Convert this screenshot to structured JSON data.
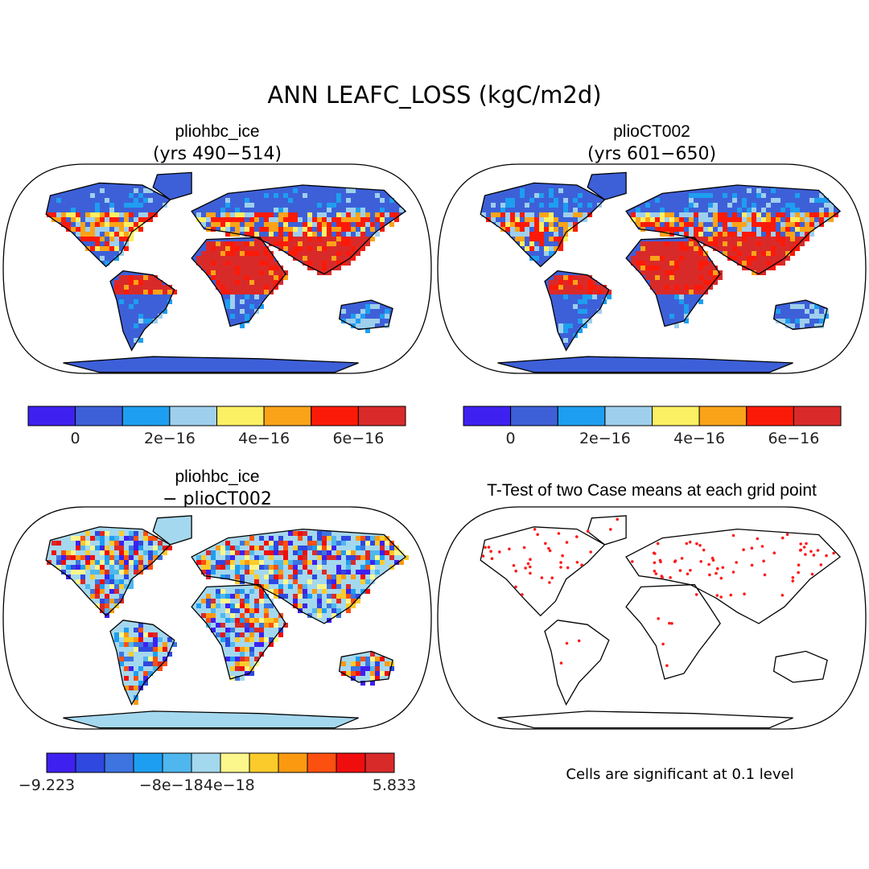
{
  "title": "ANN LEAFC_LOSS (kgC/m2d)",
  "colors": {
    "ocean": "#ffffff",
    "coast": "#000000",
    "significant": "#ff1a1a"
  },
  "panels": [
    {
      "id": "case1",
      "title": "pliohbc_ice",
      "subtitle": "(yrs 490−514)",
      "colorbar": {
        "colors": [
          "#3e20f0",
          "#3d60d8",
          "#1e9ef0",
          "#9ecfec",
          "#fbef63",
          "#fba318",
          "#fb1a08",
          "#d92a2a"
        ],
        "labels": [
          "0",
          "2e−16",
          "4e−16",
          "6e−16"
        ]
      }
    },
    {
      "id": "case2",
      "title": "plioCT002",
      "subtitle": "(yrs 601−650)",
      "colorbar": {
        "colors": [
          "#3e20f0",
          "#3d60d8",
          "#1e9ef0",
          "#9ecfec",
          "#fbef63",
          "#fba318",
          "#fb1a08",
          "#d92a2a"
        ],
        "labels": [
          "0",
          "2e−16",
          "4e−16",
          "6e−16"
        ]
      }
    },
    {
      "id": "diff",
      "title": "pliohbc_ice",
      "subtitle": "− plioCT002",
      "colorbar": {
        "colors": [
          "#3e20f0",
          "#2e48e0",
          "#3d74e0",
          "#1e9ef0",
          "#4fb7ee",
          "#a4d8ee",
          "#fbf78c",
          "#fbcb2b",
          "#fb9a10",
          "#fb5010",
          "#f00d0d",
          "#d92a2a"
        ],
        "labels": [
          "−9.223",
          "−8e−18",
          "4e−18",
          "5.833"
        ]
      }
    },
    {
      "id": "ttest",
      "title": "T-Test of two Case means at each grid point",
      "footnote": "Cells are significant at 0.1 level"
    }
  ],
  "chart_data": [
    {
      "type": "heatmap",
      "title": "pliohbc_ice (yrs 490−514)",
      "variable": "LEAFC_LOSS",
      "units": "kgC/m2d",
      "colorbar_ticks": [
        0,
        2e-16,
        4e-16,
        6e-16
      ],
      "projection": "Robinson"
    },
    {
      "type": "heatmap",
      "title": "plioCT002 (yrs 601−650)",
      "variable": "LEAFC_LOSS",
      "units": "kgC/m2d",
      "colorbar_ticks": [
        0,
        2e-16,
        4e-16,
        6e-16
      ],
      "projection": "Robinson"
    },
    {
      "type": "heatmap",
      "title": "pliohbc_ice − plioCT002",
      "variable": "LEAFC_LOSS difference",
      "units": "kgC/m2d",
      "colorbar_ticks": [
        -9.223,
        -8e-18,
        4e-18,
        5.833
      ],
      "projection": "Robinson"
    },
    {
      "type": "scatter",
      "title": "T-Test of two Case means at each grid point",
      "significance_level": 0.1,
      "projection": "Robinson"
    }
  ]
}
